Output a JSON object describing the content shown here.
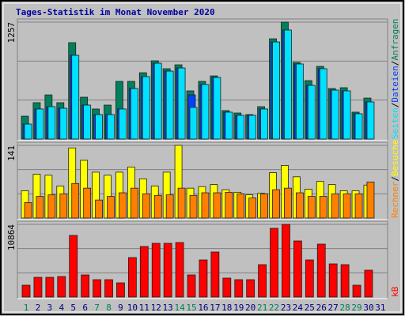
{
  "title": "Tages-Statistik im Monat November 2020",
  "legend_separator": "/",
  "chart_data": [
    {
      "type": "bar",
      "ylim": [
        0,
        1257
      ],
      "yticks": [
        1257
      ],
      "gridlines": [
        419,
        838
      ],
      "series": [
        {
          "name": "Anfragen",
          "color": "#00805c",
          "values": [
            246,
            391,
            475,
            391,
            1036,
            450,
            323,
            365,
            620,
            620,
            713,
            841,
            756,
            798,
            518,
            620,
            679,
            306,
            280,
            263,
            348,
            1078,
            1257,
            824,
            628,
            781,
            543,
            552,
            289,
            441,
            null
          ]
        },
        {
          "name": "Dateien",
          "color": "#0040ff",
          "values": [
            161,
            323,
            348,
            331,
            900,
            365,
            263,
            263,
            323,
            543,
            671,
            815,
            730,
            764,
            475,
            586,
            662,
            289,
            255,
            255,
            323,
            1044,
            1172,
            807,
            577,
            756,
            526,
            518,
            272,
            399,
            null
          ]
        },
        {
          "name": "Seiten",
          "color": "#00e0ff",
          "values": [
            161,
            323,
            348,
            331,
            900,
            365,
            263,
            263,
            323,
            543,
            671,
            815,
            730,
            764,
            340,
            586,
            662,
            289,
            255,
            255,
            323,
            1044,
            1172,
            807,
            577,
            756,
            526,
            518,
            272,
            399,
            null
          ]
        }
      ]
    },
    {
      "type": "bar",
      "ylim": [
        0,
        141
      ],
      "yticks": [
        141
      ],
      "gridlines": [
        47,
        94
      ],
      "series": [
        {
          "name": "Besuche",
          "color": "#ffff00",
          "values": [
            53,
            85,
            83,
            62,
            136,
            112,
            89,
            83,
            89,
            99,
            76,
            62,
            89,
            141,
            58,
            61,
            65,
            55,
            50,
            45,
            48,
            88,
            102,
            80,
            56,
            71,
            65,
            53,
            53,
            64,
            null
          ]
        },
        {
          "name": "Rechner",
          "color": "#ff8000",
          "values": [
            30,
            42,
            45,
            47,
            67,
            58,
            35,
            42,
            49,
            58,
            47,
            44,
            45,
            58,
            44,
            49,
            49,
            50,
            47,
            39,
            47,
            55,
            58,
            49,
            42,
            42,
            47,
            47,
            47,
            70,
            null
          ]
        }
      ]
    },
    {
      "type": "bar",
      "ylim": [
        0,
        10864
      ],
      "yticks": [
        10864
      ],
      "gridlines": [
        3621,
        7243
      ],
      "categories": [
        "1",
        "2",
        "3",
        "4",
        "5",
        "6",
        "7",
        "8",
        "9",
        "10",
        "11",
        "12",
        "13",
        "14",
        "15",
        "16",
        "17",
        "18",
        "19",
        "20",
        "21",
        "22",
        "23",
        "24",
        "25",
        "26",
        "27",
        "28",
        "29",
        "30",
        "31"
      ],
      "label_colors": [
        "#00805c",
        "#000080",
        "#000080",
        "#000080",
        "#000080",
        "#000080",
        "#00805c",
        "#00805c",
        "#000080",
        "#000080",
        "#000080",
        "#000080",
        "#000080",
        "#00805c",
        "#00805c",
        "#000080",
        "#000080",
        "#000080",
        "#000080",
        "#000080",
        "#00805c",
        "#00805c",
        "#000080",
        "#000080",
        "#000080",
        "#000080",
        "#000080",
        "#00805c",
        "#00805c",
        "#000080",
        "#000080"
      ],
      "series": [
        {
          "name": "kB",
          "color": "#ff0000",
          "values": [
            1771,
            2952,
            2952,
            3070,
            9211,
            3307,
            2598,
            2598,
            2126,
            5905,
            7558,
            8031,
            8031,
            8149,
            3307,
            5550,
            6732,
            2834,
            2598,
            2598,
            4842,
            10274,
            10864,
            8385,
            5550,
            7912,
            4960,
            4842,
            1771,
            4015,
            null
          ]
        }
      ]
    }
  ]
}
